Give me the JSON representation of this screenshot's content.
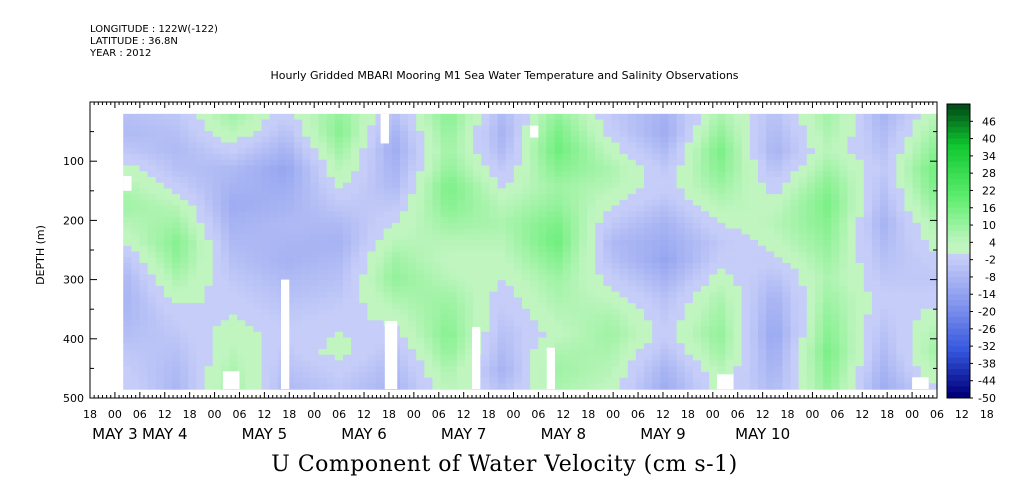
{
  "header": {
    "longitude": "LONGITUDE : 122W(-122)",
    "latitude": "LATITUDE : 36.8N",
    "year": "YEAR : 2012"
  },
  "chart_data": {
    "type": "heatmap",
    "title": "Hourly Gridded MBARI Mooring M1 Sea Water Temperature and Salinity Observations",
    "variable_title": "U Component of Water Velocity (cm s-1)",
    "ylabel": "DEPTH (m)",
    "xlabel": "",
    "x_range_hours": [
      0,
      204
    ],
    "x_start": "May 2 18:00",
    "ylim": [
      500,
      0
    ],
    "yticks": [
      100,
      200,
      300,
      400,
      500
    ],
    "hour_tick_labels": [
      "18",
      "00",
      "06",
      "12",
      "18",
      "00",
      "06",
      "12",
      "18",
      "00",
      "06",
      "12",
      "18",
      "00",
      "06",
      "12",
      "18",
      "00",
      "06",
      "12",
      "18",
      "00",
      "06",
      "12",
      "18",
      "00",
      "06",
      "12",
      "18",
      "00",
      "06",
      "12",
      "18",
      "00",
      "06",
      "12",
      "18"
    ],
    "date_labels": [
      {
        "label": "MAY  3",
        "hour": 6
      },
      {
        "label": "MAY  4",
        "hour": 18
      },
      {
        "label": "MAY  5",
        "hour": 42
      },
      {
        "label": "MAY  6",
        "hour": 66
      },
      {
        "label": "MAY  7",
        "hour": 90
      },
      {
        "label": "MAY  8",
        "hour": 114
      },
      {
        "label": "MAY  9",
        "hour": 138
      },
      {
        "label": "MAY 10",
        "hour": 162
      }
    ],
    "colorbar_labels": [
      "46",
      "40",
      "34",
      "28",
      "22",
      "16",
      "10",
      "4",
      "-2",
      "-8",
      "-14",
      "-20",
      "-26",
      "-32",
      "-38",
      "-44",
      "-50"
    ],
    "colorbar_range": [
      -50,
      52
    ],
    "colorbar_colors": {
      "neg_max": "#00007a",
      "neg_mid": "#3355dd",
      "neg_low": "#8899ee",
      "neg_min": "#c5cdf8",
      "zero": "#ffffff",
      "pos_min": "#c0f5c0",
      "pos_low": "#60ee70",
      "pos_mid": "#10c830",
      "pos_max": "#003d14"
    },
    "data_start_hour": 8,
    "data_depth_range_m": [
      20,
      485
    ],
    "column_profiles_cm_s": [
      [
        -6,
        -8,
        -4,
        2,
        6,
        8,
        4,
        0,
        -6,
        -9,
        -10,
        -9,
        -7,
        -4,
        -2,
        0
      ],
      [
        -4,
        -6,
        -8,
        -6,
        -2,
        4,
        8,
        12,
        10,
        6,
        2,
        -2,
        -4,
        -6,
        -8,
        -9
      ],
      [
        8,
        4,
        -2,
        -8,
        -10,
        -12,
        -10,
        -8,
        -6,
        -4,
        -2,
        0,
        2,
        4,
        6,
        8
      ],
      [
        -2,
        -6,
        -10,
        -14,
        -12,
        -10,
        -8,
        -9,
        -10,
        -8,
        -6,
        -4,
        -2,
        -4,
        -6,
        -8
      ],
      [
        10,
        12,
        8,
        4,
        0,
        -4,
        -8,
        -10,
        -8,
        -6,
        -4,
        -2,
        0,
        2,
        -2,
        -4
      ],
      [
        -6,
        -10,
        -12,
        -10,
        -8,
        -4,
        0,
        4,
        8,
        10,
        6,
        2,
        -2,
        -6,
        -8,
        -10
      ],
      [
        12,
        10,
        8,
        10,
        14,
        12,
        8,
        4,
        2,
        4,
        8,
        10,
        12,
        10,
        6,
        4
      ],
      [
        -8,
        -10,
        -8,
        -4,
        0,
        4,
        6,
        4,
        2,
        0,
        -2,
        -4,
        -6,
        -8,
        -10,
        -6
      ],
      [
        10,
        14,
        16,
        12,
        8,
        10,
        14,
        16,
        12,
        8,
        6,
        4,
        2,
        6,
        8,
        6
      ],
      [
        -4,
        -2,
        2,
        6,
        4,
        0,
        -4,
        -8,
        -6,
        -2,
        2,
        6,
        8,
        6,
        4,
        2
      ],
      [
        -10,
        -12,
        -8,
        -4,
        -2,
        -6,
        -10,
        -12,
        -14,
        -10,
        -6,
        -4,
        -2,
        -6,
        -10,
        -12
      ],
      [
        6,
        10,
        14,
        12,
        8,
        4,
        0,
        -4,
        -2,
        2,
        6,
        8,
        10,
        8,
        4,
        2
      ],
      [
        -6,
        -8,
        -10,
        -6,
        -2,
        2,
        4,
        2,
        -2,
        -6,
        -10,
        -12,
        -14,
        -12,
        -10,
        -8
      ],
      [
        8,
        6,
        4,
        8,
        12,
        14,
        12,
        10,
        8,
        6,
        8,
        10,
        12,
        14,
        12,
        10
      ],
      [
        -10,
        -8,
        -6,
        -4,
        -6,
        -8,
        -10,
        -8,
        -6,
        -4,
        -2,
        -4,
        -6,
        -8,
        -10,
        -12
      ],
      [
        4,
        8,
        12,
        16,
        14,
        10,
        6,
        2,
        -2,
        -4,
        -2,
        2,
        6,
        8,
        4,
        0
      ]
    ],
    "missing_blocks": [
      {
        "hour_from": 8,
        "hour_to": 10,
        "depth_from": 125,
        "depth_to": 150
      },
      {
        "hour_from": 106,
        "hour_to": 108,
        "depth_from": 40,
        "depth_to": 60
      },
      {
        "hour_from": 32,
        "hour_to": 36,
        "depth_from": 455,
        "depth_to": 485
      },
      {
        "hour_from": 46,
        "hour_to": 48,
        "depth_from": 300,
        "depth_to": 485
      },
      {
        "hour_from": 70,
        "hour_to": 72,
        "depth_from": 20,
        "depth_to": 70
      },
      {
        "hour_from": 71,
        "hour_to": 74,
        "depth_from": 370,
        "depth_to": 485
      },
      {
        "hour_from": 92,
        "hour_to": 94,
        "depth_from": 380,
        "depth_to": 485
      },
      {
        "hour_from": 110,
        "hour_to": 112,
        "depth_from": 415,
        "depth_to": 485
      },
      {
        "hour_from": 151,
        "hour_to": 155,
        "depth_from": 460,
        "depth_to": 485
      },
      {
        "hour_from": 198,
        "hour_to": 202,
        "depth_from": 465,
        "depth_to": 485
      }
    ]
  }
}
